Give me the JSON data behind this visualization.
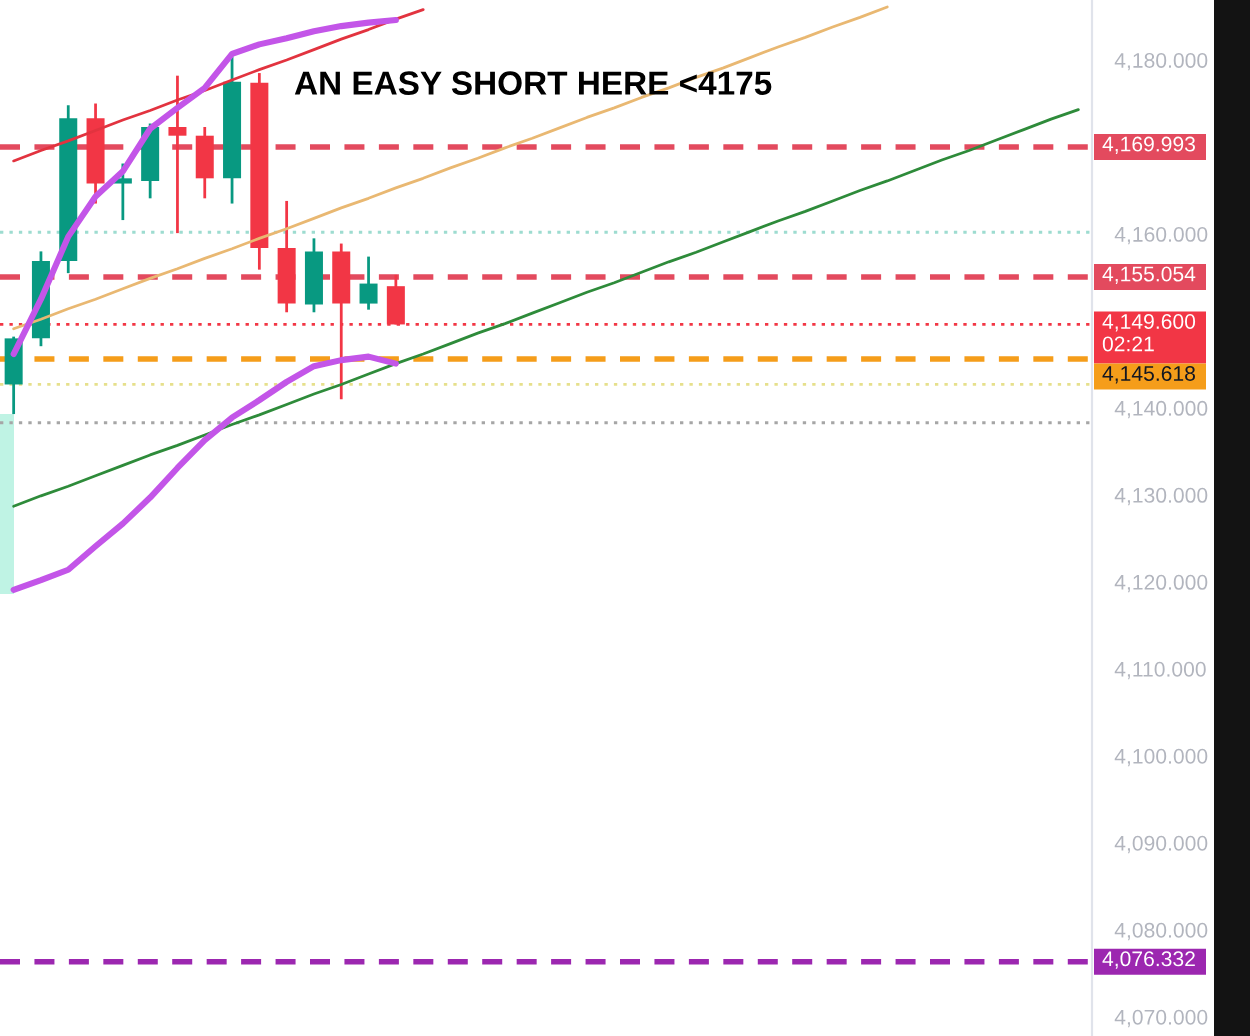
{
  "chart_data": {
    "type": "candlestick",
    "categories": [
      null,
      null,
      null,
      null,
      null,
      null,
      null,
      null,
      null,
      null,
      null,
      null,
      null,
      null,
      null,
      null,
      null,
      null,
      null,
      null,
      null,
      null,
      null,
      null,
      null,
      null,
      null,
      null,
      null,
      null,
      null,
      null,
      null,
      null,
      null,
      null,
      null,
      null,
      null,
      null
    ],
    "ohlc": [
      [
        4142.7,
        4148.2,
        4139.3,
        4148.0
      ],
      [
        4148.0,
        4158.0,
        4147.1,
        4156.9
      ],
      [
        4156.9,
        4174.8,
        4155.5,
        4173.3
      ],
      [
        4173.3,
        4175.0,
        4163.5,
        4165.8
      ],
      [
        4165.8,
        4168.1,
        4161.6,
        4166.4
      ],
      [
        4166.1,
        4172.7,
        4164.1,
        4172.3
      ],
      [
        4172.3,
        4178.2,
        4160.1,
        4171.3
      ],
      [
        4171.3,
        4172.3,
        4164.1,
        4166.4
      ],
      [
        4166.4,
        4180.4,
        4163.5,
        4177.5
      ],
      [
        4177.4,
        4178.5,
        4155.9,
        4158.4
      ],
      [
        4158.4,
        4163.8,
        4151.0,
        4152.0
      ],
      [
        4151.9,
        4159.5,
        4151.0,
        4158.0
      ],
      [
        4158.0,
        4158.9,
        4141.0,
        4152.0
      ],
      [
        4152.0,
        4157.4,
        4151.3,
        4154.3
      ],
      [
        4154.0,
        4155.3,
        4149.6,
        4149.6
      ],
      null,
      null,
      null,
      null,
      null,
      null,
      null,
      null,
      null,
      null,
      null,
      null,
      null,
      null,
      null,
      null,
      null,
      null,
      null,
      null,
      null,
      null,
      null,
      null,
      null
    ],
    "colors": [
      "#089981",
      "#089981",
      "#089981",
      "#f23645",
      "#089981",
      "#089981",
      "#f23645",
      "#f23645",
      "#089981",
      "#f23645",
      "#f23645",
      "#089981",
      "#f23645",
      "#089981",
      "#f23645",
      null,
      null,
      null,
      null,
      null,
      null,
      null,
      null,
      null,
      null,
      null,
      null,
      null,
      null,
      null,
      null,
      null,
      null,
      null,
      null,
      null,
      null,
      null,
      null,
      null
    ],
    "series": [
      {
        "type": "line",
        "color": "#e2333f",
        "values": [
          4168.4,
          4169.6,
          4170.7,
          4171.9,
          4173.1,
          4174.2,
          4175.4,
          4176.5,
          4177.7,
          4178.9,
          4180.0,
          4181.2,
          4182.4,
          4183.5,
          4184.7,
          4185.8,
          null,
          null,
          null,
          null,
          null,
          null,
          null,
          null,
          null,
          null,
          null,
          null,
          null,
          null,
          null,
          null,
          null,
          null,
          null,
          null,
          null,
          null,
          null,
          null
        ]
      },
      {
        "type": "line",
        "color": "#e9b872",
        "values": [
          4149.1,
          4150.2,
          4151.4,
          4152.5,
          4153.7,
          4154.9,
          4156.0,
          4157.2,
          4158.3,
          4159.5,
          4160.6,
          4161.8,
          4163.0,
          4164.1,
          4165.3,
          4166.4,
          4167.6,
          4168.7,
          4169.9,
          4171.0,
          4172.2,
          4173.4,
          4174.5,
          4175.7,
          4176.8,
          4178.0,
          4179.1,
          4180.3,
          4181.5,
          4182.6,
          4183.8,
          4184.9,
          4186.1,
          null,
          null,
          null,
          null,
          null,
          null,
          null
        ]
      },
      {
        "type": "line",
        "color": "#2e8b3a",
        "values": [
          4128.7,
          4129.9,
          4131.0,
          4132.2,
          4133.4,
          4134.6,
          4135.7,
          4136.9,
          4138.1,
          4139.2,
          4140.4,
          4141.6,
          4142.7,
          4143.9,
          4145.1,
          4146.2,
          4147.4,
          4148.6,
          4149.7,
          4150.9,
          4152.1,
          4153.3,
          4154.4,
          4155.6,
          4156.8,
          4157.9,
          4159.1,
          4160.3,
          4161.5,
          4162.6,
          4163.8,
          4165.0,
          4166.1,
          4167.3,
          4168.5,
          4169.6,
          4170.8,
          4172.0,
          4173.2,
          4174.3
        ]
      },
      {
        "type": "line",
        "color": "#c355e8",
        "values": [
          4146.2,
          4152.5,
          4159.7,
          4164.3,
          4167.2,
          4172.1,
          4174.5,
          4176.8,
          4180.7,
          4181.8,
          4182.5,
          4183.3,
          4183.9,
          4184.3,
          4184.6,
          null,
          null,
          null,
          null,
          null,
          null,
          null,
          null,
          null,
          null,
          null,
          null,
          null,
          null,
          null,
          null,
          null,
          null,
          null,
          null,
          null,
          null,
          null,
          null,
          null
        ]
      },
      {
        "type": "line",
        "color": "#c355e8",
        "values": [
          4119.1,
          4120.2,
          4121.4,
          4124.1,
          4126.7,
          4129.7,
          4133.1,
          4136.3,
          4138.9,
          4140.9,
          4143.0,
          4144.8,
          4145.5,
          4145.9,
          4145.1,
          null,
          null,
          null,
          null,
          null,
          null,
          null,
          null,
          null,
          null,
          null,
          null,
          null,
          null,
          null,
          null,
          null,
          null,
          null,
          null,
          null,
          null,
          null,
          null,
          null
        ]
      }
    ],
    "ylim": [
      4067.8,
      4186.9
    ],
    "yticks": [
      {
        "value": 4070,
        "label": "4,070.000"
      },
      {
        "value": 4080,
        "label": "4,080.000"
      },
      {
        "value": 4090,
        "label": "4,090.000"
      },
      {
        "value": 4100,
        "label": "4,100.000"
      },
      {
        "value": 4110,
        "label": "4,110.000"
      },
      {
        "value": 4120,
        "label": "4,120.000"
      },
      {
        "value": 4130,
        "label": "4,130.000"
      },
      {
        "value": 4140,
        "label": "4,140.000"
      },
      {
        "value": 4160,
        "label": "4,160.000"
      },
      {
        "value": 4180,
        "label": "4,180.000"
      }
    ],
    "tick_labels": "y",
    "ref_lines": [
      {
        "axis": "y",
        "value": 4169.993,
        "label": "4,169.993",
        "color": "#e34a5e",
        "line_style": "dashed"
      },
      {
        "axis": "y",
        "value": 4160.2,
        "color": "#9ddcd0",
        "line_style": "dotted"
      },
      {
        "axis": "y",
        "value": 4155.054,
        "label": "4,155.054",
        "color": "#e34a5e",
        "line_style": "dashed"
      },
      {
        "axis": "y",
        "value": 4149.6,
        "label": "4,149.600\n02:21",
        "color": "#f23645",
        "line_style": "dotted"
      },
      {
        "axis": "y",
        "value": 4145.618,
        "label": "4,145.618",
        "color": "#f59d1a",
        "line_style": "dashed"
      },
      {
        "axis": "y",
        "value": 4142.7,
        "color": "#e6e08c",
        "line_style": "dotted"
      },
      {
        "axis": "y",
        "value": 4138.3,
        "color": "#a6a6a6",
        "line_style": "dotted"
      },
      {
        "axis": "y",
        "value": 4076.332,
        "label": "4,076.332",
        "color": "#9c27b0",
        "line_style": "dashed"
      }
    ],
    "annotations": [
      "AN EASY SHORT HERE <4175"
    ]
  }
}
